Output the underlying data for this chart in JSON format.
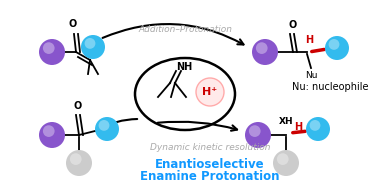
{
  "bg_color": "#ffffff",
  "title_line1": "Enantioselective",
  "title_line2": "Enamine Protonation",
  "title_color": "#1199ff",
  "title_fontsize": 8.5,
  "label_addition": "Addition–Protonation",
  "label_dynamic": "Dynamic kinetic resolution",
  "label_color": "#aaaaaa",
  "label_fontsize": 6.5,
  "nu_label": "Nu: nucleophile",
  "nu_fontsize": 7,
  "hplus": "H⁺",
  "hplus_color": "#cc0000",
  "purple_color": "#8855cc",
  "cyan_color": "#33bbee",
  "gray_color": "#cccccc",
  "red_color": "#cc0000"
}
